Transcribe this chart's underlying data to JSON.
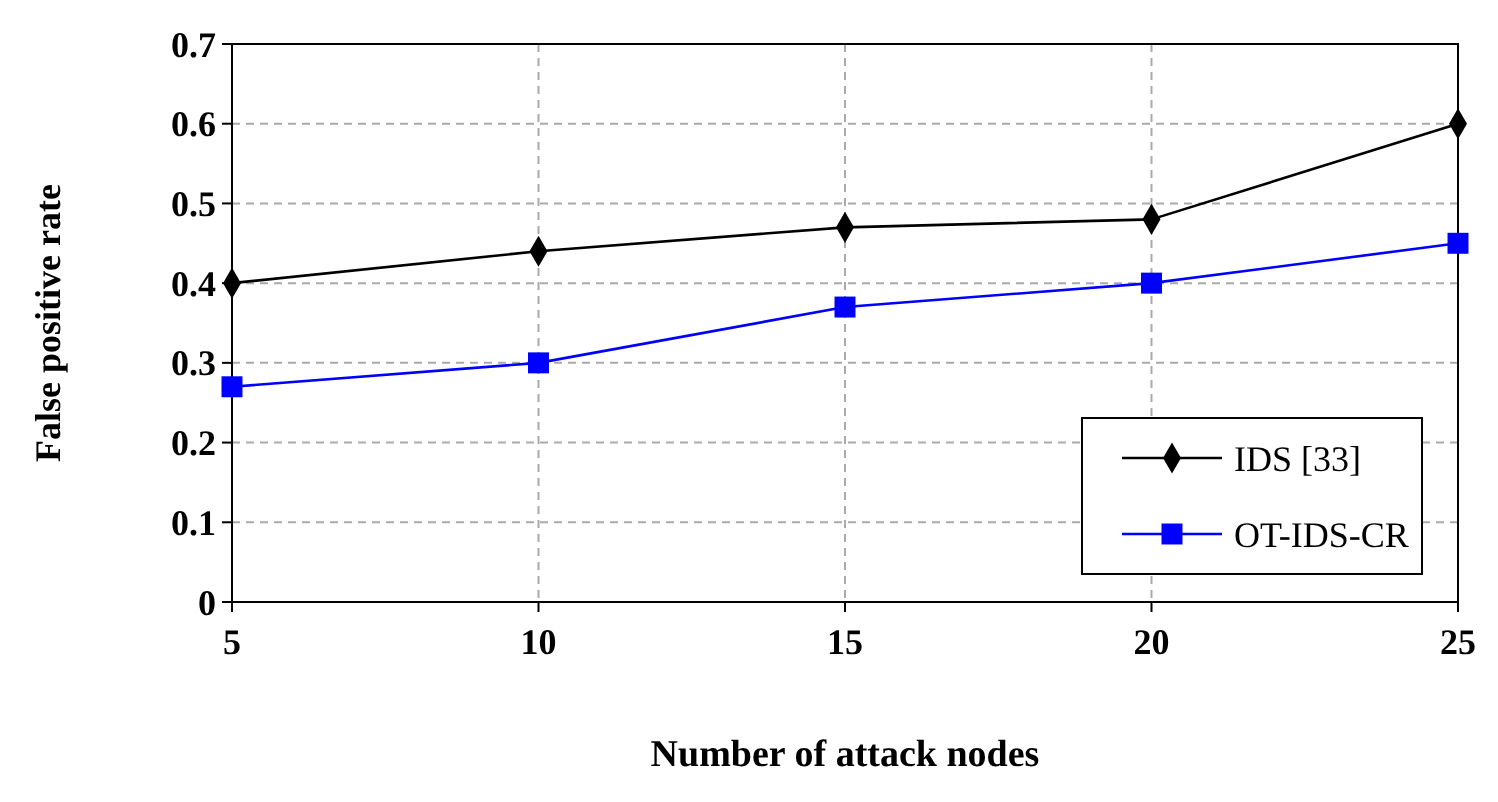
{
  "chart_data": {
    "type": "line",
    "xlabel": "Number of attack nodes",
    "ylabel": "False positive rate",
    "x": [
      5,
      10,
      15,
      20,
      25
    ],
    "xlim": [
      5,
      25
    ],
    "xticks": [
      5,
      10,
      15,
      20,
      25
    ],
    "ylim": [
      0,
      0.7
    ],
    "yticks": [
      0,
      0.1,
      0.2,
      0.3,
      0.4,
      0.5,
      0.6,
      0.7
    ],
    "series": [
      {
        "name": "IDS [33]",
        "color": "#000000",
        "marker": "diamond",
        "values": [
          0.4,
          0.44,
          0.47,
          0.48,
          0.6
        ]
      },
      {
        "name": "OT-IDS-CR",
        "color": "#0000ff",
        "marker": "square",
        "values": [
          0.27,
          0.3,
          0.37,
          0.4,
          0.45
        ]
      }
    ],
    "grid": true,
    "legend": "bottom right",
    "line_style": "solid"
  }
}
